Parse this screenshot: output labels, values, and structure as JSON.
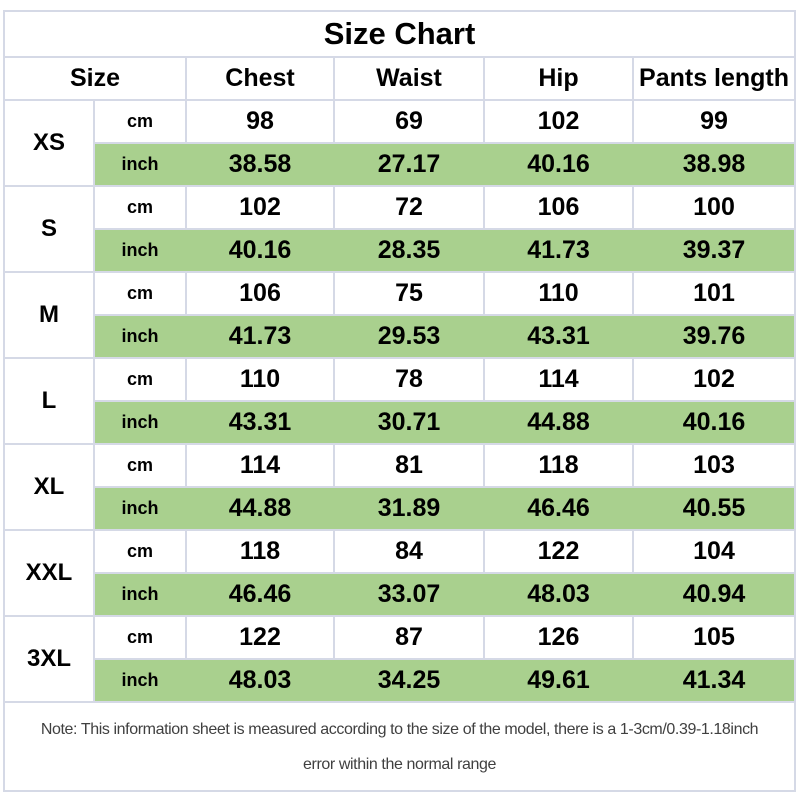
{
  "title": "Size Chart",
  "chart_data": {
    "type": "table",
    "title": "Size Chart",
    "columns": [
      "Size",
      "Chest",
      "Waist",
      "Hip",
      "Pants length"
    ],
    "unit_labels": {
      "cm": "cm",
      "inch": "inch"
    },
    "sizes": [
      {
        "label": "XS",
        "cm": [
          "98",
          "69",
          "102",
          "99"
        ],
        "inch": [
          "38.58",
          "27.17",
          "40.16",
          "38.98"
        ]
      },
      {
        "label": "S",
        "cm": [
          "102",
          "72",
          "106",
          "100"
        ],
        "inch": [
          "40.16",
          "28.35",
          "41.73",
          "39.37"
        ]
      },
      {
        "label": "M",
        "cm": [
          "106",
          "75",
          "110",
          "101"
        ],
        "inch": [
          "41.73",
          "29.53",
          "43.31",
          "39.76"
        ]
      },
      {
        "label": "L",
        "cm": [
          "110",
          "78",
          "114",
          "102"
        ],
        "inch": [
          "43.31",
          "30.71",
          "44.88",
          "40.16"
        ]
      },
      {
        "label": "XL",
        "cm": [
          "114",
          "81",
          "118",
          "103"
        ],
        "inch": [
          "44.88",
          "31.89",
          "46.46",
          "40.55"
        ]
      },
      {
        "label": "XXL",
        "cm": [
          "118",
          "84",
          "122",
          "104"
        ],
        "inch": [
          "46.46",
          "33.07",
          "48.03",
          "40.94"
        ]
      },
      {
        "label": "3XL",
        "cm": [
          "122",
          "87",
          "126",
          "105"
        ],
        "inch": [
          "48.03",
          "34.25",
          "49.61",
          "41.34"
        ]
      }
    ]
  },
  "note": {
    "line1": "Note: This information sheet is measured according to the size of the model, there is a 1-3cm/0.39-1.18inch",
    "line2": "error within the normal range"
  },
  "colors": {
    "highlight_green": "#a9d08e",
    "grid_border": "#d5d9e6",
    "text": "#000000",
    "note_text": "#404040"
  }
}
